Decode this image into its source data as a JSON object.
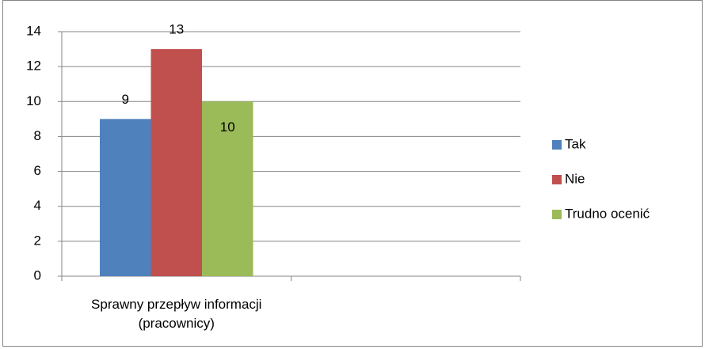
{
  "chart_data": {
    "type": "bar",
    "categories": [
      "Sprawny przepływ informacji (pracownicy)",
      null
    ],
    "series": [
      {
        "name": "Tak",
        "color": "#4f81bd",
        "values": [
          9,
          null
        ]
      },
      {
        "name": "Nie",
        "color": "#c0504d",
        "values": [
          13,
          null
        ]
      },
      {
        "name": "Trudno ocenić",
        "color": "#9bbb59",
        "values": [
          10,
          null
        ]
      }
    ],
    "ylim": [
      0,
      14
    ],
    "yticks": [
      0,
      2,
      4,
      6,
      8,
      10,
      12,
      14
    ],
    "grid": true,
    "legend": "right",
    "data_labels": true
  }
}
